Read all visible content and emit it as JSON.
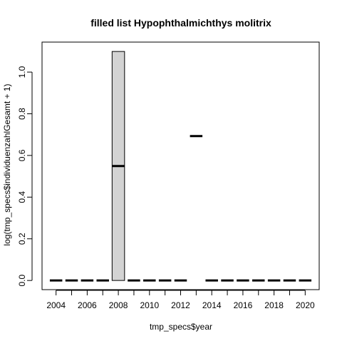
{
  "chart_data": {
    "type": "box",
    "title": "filled list Hypophthalmichthys molitrix",
    "xlabel": "tmp_specs$year",
    "ylabel": "log(tmp_specs$individuenzahlGesamt + 1)",
    "categories": [
      "2004",
      "2005",
      "2006",
      "2007",
      "2008",
      "2009",
      "2010",
      "2011",
      "2012",
      "2013",
      "2014",
      "2015",
      "2016",
      "2017",
      "2018",
      "2019",
      "2020"
    ],
    "x_tick_labels": [
      "2004",
      "2006",
      "2008",
      "2010",
      "2012",
      "2014",
      "2016",
      "2018",
      "2020"
    ],
    "y_tick_labels": [
      "0.0",
      "0.2",
      "0.4",
      "0.6",
      "0.8",
      "1.0"
    ],
    "y_ticks": [
      0,
      0.2,
      0.4,
      0.6,
      0.8,
      1.0
    ],
    "ylim": [
      -0.044,
      1.144
    ],
    "series": [
      {
        "boxes": [
          {
            "x": "2004",
            "low": 0,
            "q1": 0,
            "median": 0,
            "q3": 0,
            "high": 0
          },
          {
            "x": "2005",
            "low": 0,
            "q1": 0,
            "median": 0,
            "q3": 0,
            "high": 0
          },
          {
            "x": "2006",
            "low": 0,
            "q1": 0,
            "median": 0,
            "q3": 0,
            "high": 0
          },
          {
            "x": "2007",
            "low": 0,
            "q1": 0,
            "median": 0,
            "q3": 0,
            "high": 0
          },
          {
            "x": "2008",
            "low": 0,
            "q1": 0,
            "median": 0.549,
            "q3": 1.099,
            "high": 1.099
          },
          {
            "x": "2009",
            "low": 0,
            "q1": 0,
            "median": 0,
            "q3": 0,
            "high": 0
          },
          {
            "x": "2010",
            "low": 0,
            "q1": 0,
            "median": 0,
            "q3": 0,
            "high": 0
          },
          {
            "x": "2011",
            "low": 0,
            "q1": 0,
            "median": 0,
            "q3": 0,
            "high": 0
          },
          {
            "x": "2012",
            "low": 0,
            "q1": 0,
            "median": 0,
            "q3": 0,
            "high": 0
          },
          {
            "x": "2013",
            "low": 0.693,
            "q1": 0.693,
            "median": 0.693,
            "q3": 0.693,
            "high": 0.693
          },
          {
            "x": "2014",
            "low": 0,
            "q1": 0,
            "median": 0,
            "q3": 0,
            "high": 0
          },
          {
            "x": "2015",
            "low": 0,
            "q1": 0,
            "median": 0,
            "q3": 0,
            "high": 0
          },
          {
            "x": "2016",
            "low": 0,
            "q1": 0,
            "median": 0,
            "q3": 0,
            "high": 0
          },
          {
            "x": "2017",
            "low": 0,
            "q1": 0,
            "median": 0,
            "q3": 0,
            "high": 0
          },
          {
            "x": "2018",
            "low": 0,
            "q1": 0,
            "median": 0,
            "q3": 0,
            "high": 0
          },
          {
            "x": "2019",
            "low": 0,
            "q1": 0,
            "median": 0,
            "q3": 0,
            "high": 0
          },
          {
            "x": "2020",
            "low": 0,
            "q1": 0,
            "median": 0,
            "q3": 0,
            "high": 0
          }
        ]
      }
    ],
    "box_fill": "#d3d3d3",
    "grid": false
  }
}
